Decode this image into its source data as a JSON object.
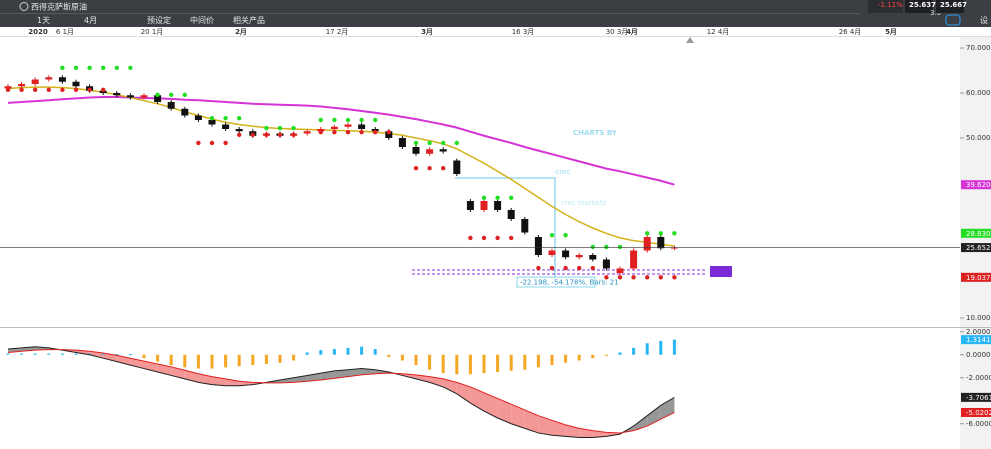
{
  "toolbar": {
    "instrument": "西得克萨斯原油",
    "interval": "1天",
    "range": "4月",
    "buttons": [
      "预设定",
      "中间价",
      "相关产品"
    ],
    "change": "-1.11%",
    "sell": "25.637",
    "spread": "3.0",
    "buy": "25.667",
    "settings": "设"
  },
  "date_axis": [
    "2020",
    "6 1月",
    "20 1月",
    "2月",
    "17 2月",
    "3月",
    "16 3月",
    "30 3月",
    "4月",
    "12 4月",
    "26 4月",
    "5月"
  ],
  "watermark": {
    "top": "CHARTS BY",
    "logo": "cmc",
    "brand": "cmc markets"
  },
  "annotation": "-22.198, -54.178%, Bars: 21",
  "chart_data": [
    {
      "type": "candlestick",
      "open": [
        61,
        61.5,
        62,
        63,
        63.5,
        62.5,
        61.5,
        60.5,
        60,
        59.5,
        59,
        59.5,
        58,
        56.5,
        55,
        54,
        53,
        52,
        51.5,
        50.5,
        51,
        50.5,
        51,
        51.5,
        52,
        52.5,
        53,
        52,
        51.5,
        50,
        48,
        46.5,
        47.5,
        45,
        36,
        34,
        36,
        34,
        32,
        28,
        24,
        25,
        23.5,
        24,
        23,
        20,
        21,
        25,
        28,
        25.5
      ],
      "close": [
        61.5,
        62,
        63,
        63.5,
        62.5,
        61.5,
        60.5,
        60,
        59.5,
        59,
        59.5,
        58,
        56.5,
        55,
        54,
        53,
        52,
        51.5,
        50.5,
        51,
        50.5,
        51,
        51.5,
        52,
        52.5,
        53,
        52,
        51.5,
        50,
        48,
        46.5,
        47.5,
        47,
        42,
        34,
        36,
        34,
        32,
        29,
        24,
        25,
        23.5,
        24,
        23,
        21,
        21,
        25,
        28,
        25.5,
        25.652
      ],
      "close_label": "25.6520",
      "up_color": "#e02020",
      "down_color": "#111111",
      "lines": [
        {
          "color": "#d633d6",
          "values": [
            57.8,
            58,
            58.2,
            58.4,
            58.6,
            58.8,
            59,
            59.1,
            59.1,
            59,
            58.9,
            58.8,
            58.7,
            58.5,
            58.4,
            58.2,
            58,
            57.8,
            57.6,
            57.5,
            57.4,
            57.3,
            57.2,
            57,
            56.7,
            56.4,
            56,
            55.6,
            55.2,
            54.7,
            54.2,
            53.6,
            53,
            52.3,
            51.4,
            50.5,
            49.7,
            48.9,
            48,
            47.2,
            46.4,
            45.6,
            44.8,
            44,
            43.2,
            42.6,
            41.9,
            41.2,
            40.5,
            39.62
          ],
          "last_label": "39.6200"
        },
        {
          "color": "#d4b21a",
          "values": [
            61,
            61.2,
            61.3,
            61.3,
            61.2,
            61,
            60.6,
            60.2,
            59.6,
            59,
            58.3,
            57.6,
            56.8,
            55.8,
            55,
            54.2,
            53.5,
            53,
            52.6,
            52.3,
            52.1,
            52,
            51.9,
            51.8,
            51.7,
            51.6,
            51.5,
            51.3,
            51,
            50.6,
            50,
            49.4,
            48.7,
            47.6,
            46,
            44.4,
            42.6,
            40.8,
            38.8,
            36.8,
            34.8,
            33,
            31.4,
            30,
            28.8,
            27.8,
            27.2,
            26.8,
            26.4,
            26
          ]
        }
      ],
      "dots": [
        {
          "color": "#22dd22",
          "values": [
            null,
            null,
            null,
            null,
            65.6,
            65.6,
            65.6,
            65.6,
            65.6,
            65.6,
            null,
            59.6,
            59.6,
            59.6,
            null,
            54.4,
            54.4,
            54.4,
            null,
            52.2,
            52.2,
            52.2,
            null,
            54,
            54,
            54,
            54,
            54,
            null,
            null,
            48.9,
            48.9,
            48.9,
            48.9,
            null,
            36.7,
            36.7,
            36.7,
            null,
            null,
            28.4,
            28.4,
            null,
            25.8,
            25.8,
            25.8,
            null,
            28.83,
            28.83,
            28.83
          ],
          "last_label": "28.8300"
        },
        {
          "color": "#dd2222",
          "values": [
            60.7,
            60.7,
            60.7,
            60.7,
            60.7,
            60.7,
            60.7,
            60.7,
            null,
            null,
            null,
            null,
            null,
            null,
            48.9,
            48.9,
            48.9,
            50.7,
            50.7,
            50.7,
            50.7,
            50.7,
            null,
            51.3,
            51.3,
            51.3,
            51.3,
            51.3,
            51.3,
            null,
            43.3,
            43.3,
            43.3,
            null,
            27.8,
            27.8,
            27.8,
            27.8,
            null,
            21.1,
            21.1,
            21.1,
            21.1,
            21.1,
            19.037,
            19.037,
            19.037,
            19.037,
            19.037,
            19.037
          ],
          "last_label": "19.0370"
        }
      ],
      "ylim": [
        8,
        72
      ],
      "yticks": [
        {
          "value": 70,
          "label": "70.0000"
        },
        {
          "value": 60,
          "label": "60.0000"
        },
        {
          "value": 50,
          "label": "50.0000"
        },
        {
          "value": 10,
          "label": "10.0000"
        }
      ]
    },
    {
      "type": "macd",
      "histogram": {
        "pos_color": "#29b6f6",
        "neg_color": "#f5a623",
        "values": [
          0.1,
          0.1,
          0.1,
          0.1,
          0.1,
          0.1,
          0.1,
          0.1,
          0.05,
          0.05,
          -0.3,
          -0.6,
          -0.9,
          -1.1,
          -1.2,
          -1.2,
          -1.1,
          -1,
          -0.9,
          -0.8,
          -0.7,
          -0.5,
          0.2,
          0.4,
          0.5,
          0.6,
          0.7,
          0.5,
          -0.2,
          -0.5,
          -0.9,
          -1.3,
          -1.6,
          -1.7,
          -1.7,
          -1.6,
          -1.5,
          -1.4,
          -1.3,
          -1.1,
          -0.9,
          -0.7,
          -0.5,
          -0.3,
          -0.1,
          0.2,
          0.6,
          1,
          1.2,
          1.3141
        ],
        "last_label": "1.3141"
      },
      "macd": {
        "color": "#222222",
        "values": [
          0.5,
          0.6,
          0.7,
          0.6,
          0.4,
          0.2,
          0,
          -0.3,
          -0.6,
          -0.9,
          -1.2,
          -1.5,
          -1.8,
          -2.1,
          -2.4,
          -2.6,
          -2.7,
          -2.7,
          -2.6,
          -2.4,
          -2.2,
          -2,
          -1.8,
          -1.6,
          -1.4,
          -1.3,
          -1.2,
          -1.3,
          -1.5,
          -1.8,
          -2.1,
          -2.4,
          -2.8,
          -3.4,
          -4.2,
          -4.9,
          -5.5,
          -6,
          -6.4,
          -6.8,
          -7,
          -7.1,
          -7.2,
          -7.2,
          -7.1,
          -6.9,
          -6.2,
          -5.3,
          -4.4,
          -3.7061
        ],
        "last_label": "-3.7061"
      },
      "signal": {
        "color": "#e02020",
        "values": [
          0.2,
          0.3,
          0.4,
          0.45,
          0.45,
          0.4,
          0.3,
          0.15,
          -0.05,
          -0.3,
          -0.55,
          -0.8,
          -1.05,
          -1.35,
          -1.65,
          -1.9,
          -2.1,
          -2.3,
          -2.4,
          -2.45,
          -2.45,
          -2.4,
          -2.3,
          -2.2,
          -2.05,
          -1.9,
          -1.75,
          -1.65,
          -1.6,
          -1.65,
          -1.75,
          -1.9,
          -2.1,
          -2.4,
          -2.8,
          -3.3,
          -3.8,
          -4.3,
          -4.8,
          -5.3,
          -5.7,
          -6.1,
          -6.4,
          -6.6,
          -6.75,
          -6.8,
          -6.6,
          -6.2,
          -5.6,
          -5.0202
        ],
        "last_label": "-5.0202"
      },
      "ylim": [
        -7.5,
        2.5
      ],
      "yticks": [
        {
          "value": 2,
          "label": "2.0000"
        },
        {
          "value": 0,
          "label": "0.0000"
        },
        {
          "value": -2,
          "label": "-2.0000"
        },
        {
          "value": -6,
          "label": "-6.0000"
        }
      ]
    }
  ]
}
